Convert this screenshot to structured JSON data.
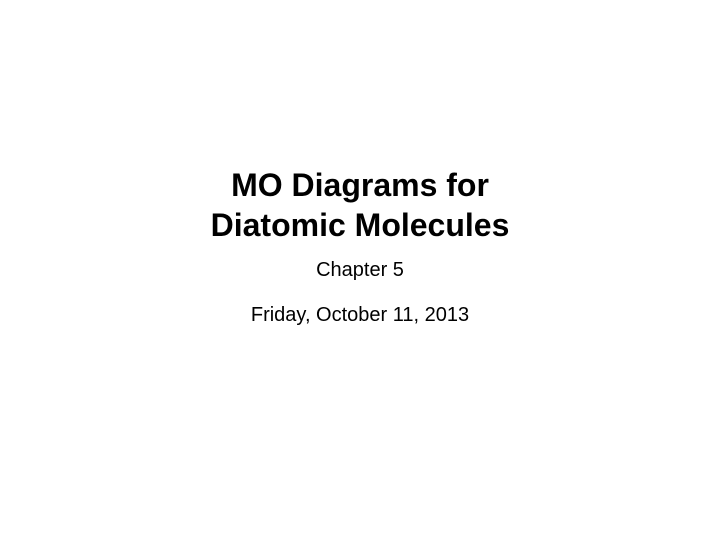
{
  "slide": {
    "title_line1": "MO Diagrams for",
    "title_line2": "Diatomic Molecules",
    "subtitle": "Chapter 5",
    "date": "Friday, October 11, 2013",
    "background_color": "#ffffff",
    "text_color": "#000000",
    "title_fontsize": 32,
    "title_fontweight": "bold",
    "subtitle_fontsize": 20,
    "date_fontsize": 20
  }
}
